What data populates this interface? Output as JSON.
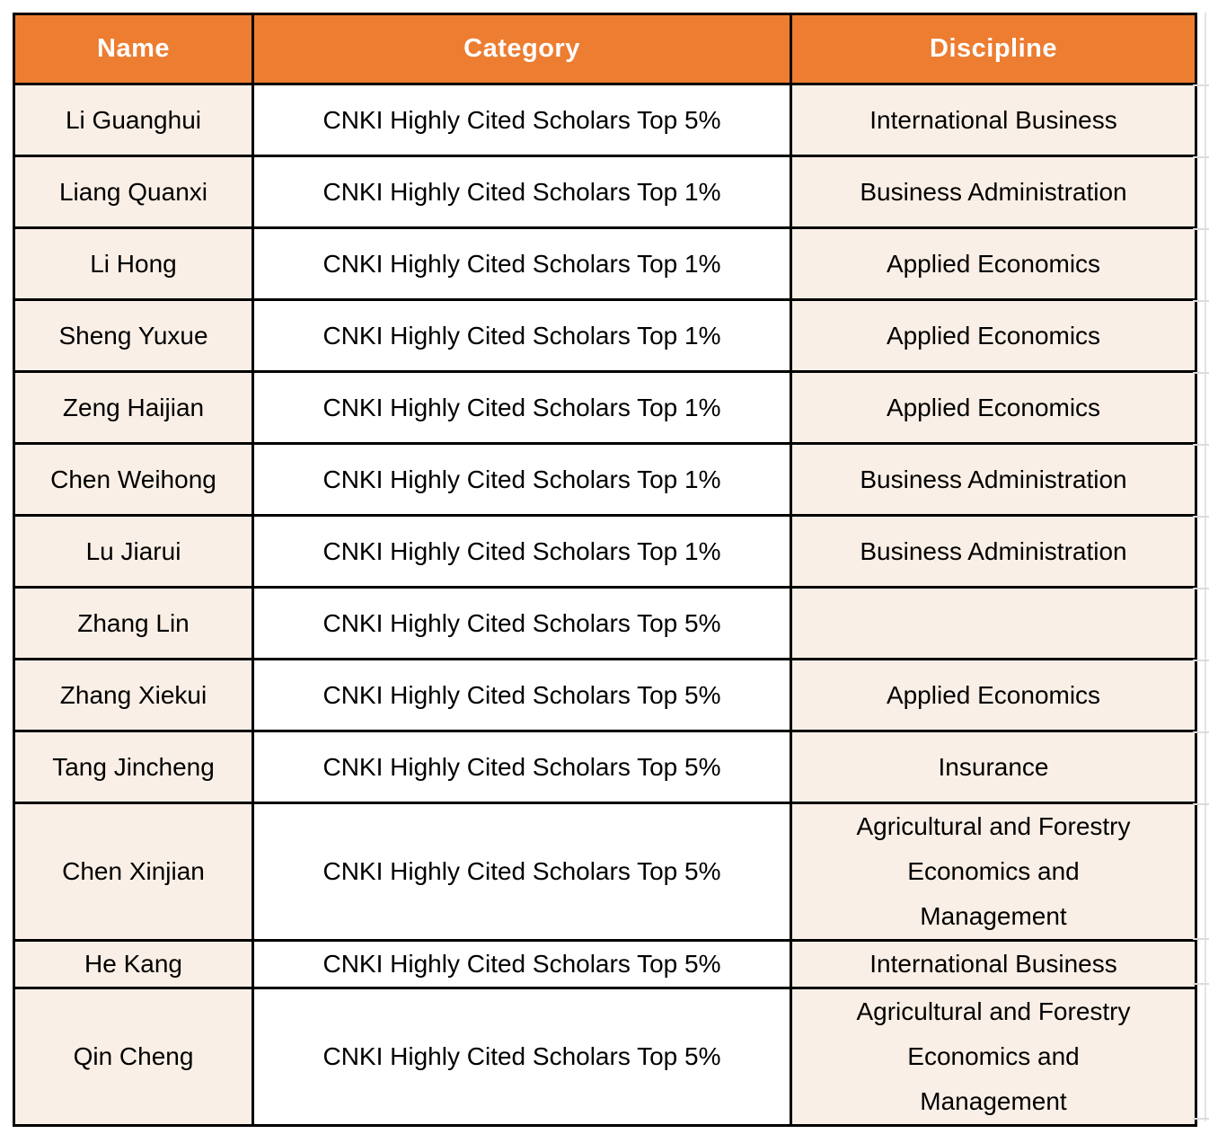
{
  "table": {
    "columns": [
      {
        "label": "Name"
      },
      {
        "label": "Category"
      },
      {
        "label": "Discipline"
      }
    ],
    "rows": [
      {
        "name": "Li Guanghui",
        "category": "CNKI Highly Cited Scholars Top 5%",
        "discipline": "International Business"
      },
      {
        "name": "Liang Quanxi",
        "category": "CNKI Highly Cited Scholars Top 1%",
        "discipline": "Business Administration"
      },
      {
        "name": "Li Hong",
        "category": "CNKI Highly Cited Scholars Top 1%",
        "discipline": "Applied Economics"
      },
      {
        "name": "Sheng Yuxue",
        "category": "CNKI Highly Cited Scholars Top 1%",
        "discipline": "Applied Economics"
      },
      {
        "name": "Zeng Haijian",
        "category": "CNKI Highly Cited Scholars Top 1%",
        "discipline": "Applied Economics"
      },
      {
        "name": "Chen Weihong",
        "category": "CNKI Highly Cited Scholars Top 1%",
        "discipline": "Business Administration"
      },
      {
        "name": "Lu Jiarui",
        "category": "CNKI Highly Cited Scholars Top 1%",
        "discipline": "Business Administration"
      },
      {
        "name": "Zhang Lin",
        "category": "CNKI Highly Cited Scholars Top 5%",
        "discipline": ""
      },
      {
        "name": "Zhang Xiekui",
        "category": "CNKI Highly Cited Scholars Top 5%",
        "discipline": "Applied Economics"
      },
      {
        "name": "Tang Jincheng",
        "category": "CNKI Highly Cited Scholars Top 5%",
        "discipline": "Insurance"
      },
      {
        "name": "Chen Xinjian",
        "category": "CNKI Highly Cited Scholars Top 5%",
        "discipline": "Agricultural and Forestry\nEconomics and\nManagement"
      },
      {
        "name": "He Kang",
        "category": "CNKI Highly Cited Scholars Top 5%",
        "discipline": "International Business"
      },
      {
        "name": "Qin Cheng",
        "category": "CNKI Highly Cited Scholars Top 5%",
        "discipline": "Agricultural and Forestry\nEconomics and\nManagement"
      }
    ],
    "colors": {
      "header_bg": "#ED7D31",
      "header_text": "#FFFFFF",
      "tinted_cell_bg": "#FAEFE6",
      "category_cell_bg": "#FFFFFF",
      "border": "#000000",
      "gridline": "#DCDCDC"
    }
  }
}
